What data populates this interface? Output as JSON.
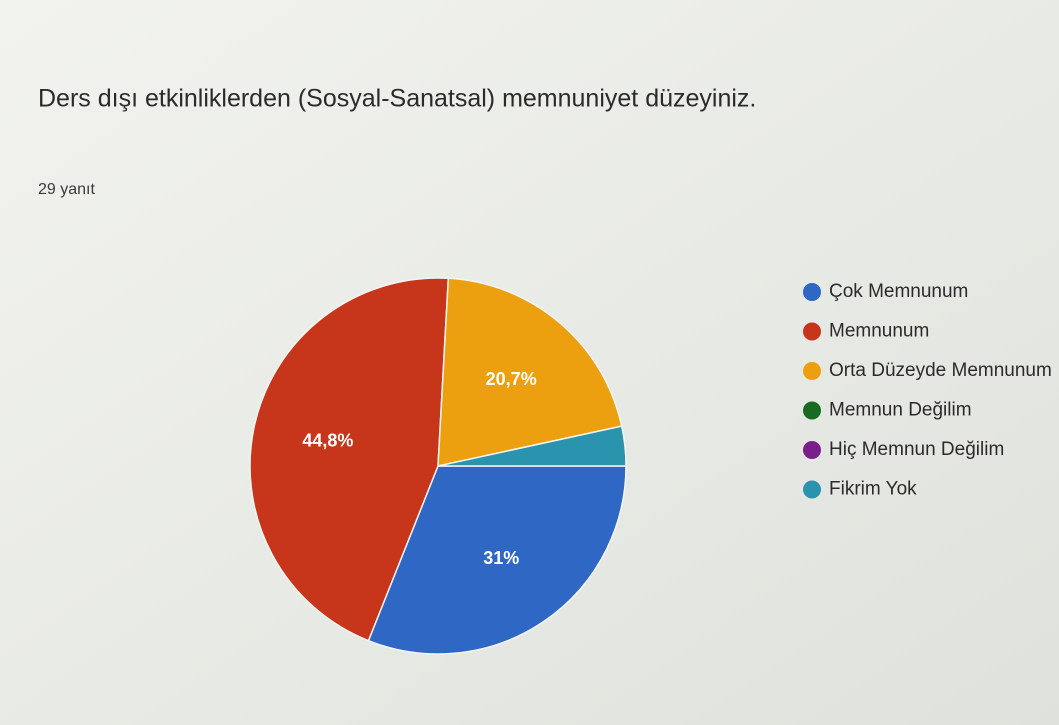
{
  "chart_data": {
    "type": "pie",
    "title": "Ders dışı etkinliklerden (Sosyal-Sanatsal) memnuniyet düzeyiniz.",
    "subtitle": "29 yanıt",
    "categories": [
      "Çok Memnunum",
      "Memnunum",
      "Orta Düzeyde Memnunum",
      "Memnun Değilim",
      "Hiç Memnun Değilim",
      "Fikrim Yok"
    ],
    "values": [
      31,
      44.8,
      20.7,
      0,
      0,
      3.4
    ],
    "value_labels": [
      "31%",
      "44,8%",
      "20,7%",
      null,
      null,
      null
    ],
    "colors": [
      "#2f67c4",
      "#c7361b",
      "#eda00f",
      "#1a6b22",
      "#7a1f8a",
      "#2a93ad"
    ],
    "legend": "right"
  }
}
